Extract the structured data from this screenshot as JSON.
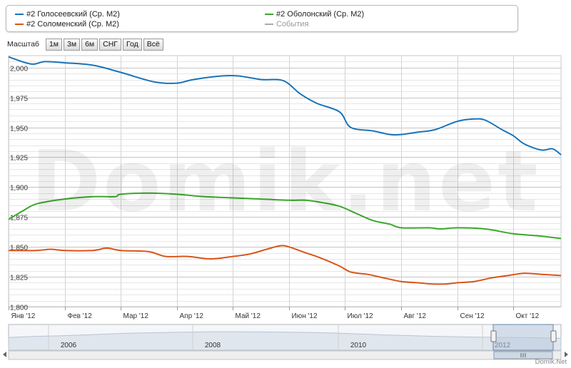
{
  "legend": {
    "items": [
      {
        "label": "#2 Голосеевский (Ср. М2)",
        "color": "#1a73b8"
      },
      {
        "label": "#2 Оболонский (Ср. М2)",
        "color": "#3aa82a"
      },
      {
        "label": "#2 Соломенский (Ср. М2)",
        "color": "#d9541a"
      },
      {
        "label": "События",
        "color": "#aaaaaa"
      }
    ]
  },
  "zoom": {
    "label": "Масштаб",
    "buttons": [
      "1м",
      "3м",
      "6м",
      "СНГ",
      "Год",
      "Всё"
    ]
  },
  "watermark": "Domik.net",
  "credit": "Domik.Net",
  "navigator": {
    "years": [
      "2006",
      "2008",
      "2010",
      "2012"
    ]
  },
  "chart_data": {
    "type": "line",
    "x_unit": "month index (0 = Jan 2012)",
    "xlim": [
      0,
      9.85
    ],
    "ylim": [
      1800,
      2010
    ],
    "yticks": [
      1800,
      1825,
      1850,
      1875,
      1900,
      1925,
      1950,
      1975,
      2000
    ],
    "ytick_labels": [
      "1,800",
      "1,825",
      "1,850",
      "1,875",
      "1,900",
      "1,925",
      "1,950",
      "1,975",
      "2,000"
    ],
    "xticks": [
      0,
      1,
      2,
      3,
      4,
      5,
      6,
      7,
      8,
      9
    ],
    "xtick_labels": [
      "Янв '12",
      "Фев '12",
      "Мар '12",
      "Апр '12",
      "Май '12",
      "Июн '12",
      "Июл '12",
      "Авг '12",
      "Сен '12",
      "Окт '12"
    ],
    "grid": true,
    "series": [
      {
        "name": "#2 Голосеевский (Ср. М2)",
        "color": "#1a73b8",
        "x": [
          0,
          0.4,
          0.65,
          1.0,
          1.5,
          2.0,
          2.6,
          3.0,
          3.3,
          3.8,
          4.1,
          4.5,
          4.9,
          5.2,
          5.5,
          5.9,
          6.1,
          6.5,
          6.8,
          7.0,
          7.3,
          7.6,
          8.0,
          8.3,
          8.5,
          8.8,
          9.0,
          9.2,
          9.5,
          9.7,
          9.85
        ],
        "y": [
          2009,
          2003,
          2005,
          2004,
          2002,
          1996,
          1988,
          1987,
          1990,
          1993,
          1993,
          1990,
          1989,
          1978,
          1970,
          1963,
          1950,
          1947,
          1944,
          1944,
          1946,
          1948,
          1955,
          1957,
          1956,
          1948,
          1943,
          1936,
          1931,
          1932,
          1927
        ]
      },
      {
        "name": "#2 Оболонский (Ср. М2)",
        "color": "#3aa82a",
        "x": [
          0,
          0.25,
          0.5,
          1.0,
          1.5,
          1.9,
          2.0,
          2.5,
          3.0,
          3.5,
          4.0,
          4.5,
          5.0,
          5.3,
          5.6,
          5.9,
          6.2,
          6.5,
          6.8,
          7.0,
          7.5,
          7.7,
          8.0,
          8.5,
          9.0,
          9.5,
          9.85
        ],
        "y": [
          1873,
          1880,
          1886,
          1890,
          1892,
          1892,
          1894,
          1895,
          1894,
          1892,
          1891,
          1890,
          1889,
          1889,
          1887,
          1884,
          1878,
          1872,
          1869,
          1866,
          1866,
          1865,
          1866,
          1865,
          1861,
          1859,
          1857
        ]
      },
      {
        "name": "#2 Соломенский (Ср. М2)",
        "color": "#d9541a",
        "x": [
          0,
          0.5,
          0.75,
          1.0,
          1.5,
          1.75,
          2.0,
          2.5,
          2.8,
          3.2,
          3.6,
          4.0,
          4.3,
          4.6,
          4.85,
          5.0,
          5.3,
          5.55,
          5.9,
          6.1,
          6.4,
          6.7,
          7.0,
          7.3,
          7.55,
          7.8,
          8.0,
          8.3,
          8.6,
          8.9,
          9.2,
          9.5,
          9.85
        ],
        "y": [
          1847,
          1847,
          1848,
          1847,
          1847,
          1849,
          1847,
          1846,
          1842,
          1842,
          1840,
          1842,
          1844,
          1848,
          1851,
          1850,
          1845,
          1841,
          1834,
          1829,
          1827,
          1824,
          1821,
          1820,
          1819,
          1819,
          1820,
          1821,
          1824,
          1826,
          1828,
          1827,
          1826
        ]
      }
    ]
  }
}
